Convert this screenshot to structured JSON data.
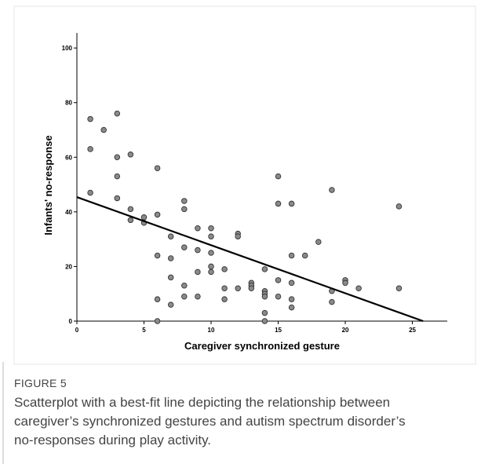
{
  "chart_data": {
    "type": "scatter",
    "xlabel": "Caregiver synchronized gesture",
    "ylabel": "Infants' no-response",
    "x": [
      1,
      1,
      1,
      2,
      3,
      3,
      3,
      3,
      4,
      4,
      4,
      5,
      5,
      6,
      6,
      6,
      6,
      6,
      7,
      7,
      7,
      7,
      8,
      8,
      8,
      8,
      8,
      9,
      9,
      9,
      9,
      10,
      10,
      10,
      10,
      10,
      11,
      11,
      11,
      12,
      12,
      12,
      13,
      13,
      13,
      14,
      14,
      14,
      14,
      14,
      14,
      15,
      15,
      15,
      15,
      16,
      16,
      16,
      16,
      16,
      17,
      18,
      19,
      19,
      19,
      20,
      20,
      21,
      24,
      24
    ],
    "y": [
      74,
      63,
      47,
      70,
      76,
      60,
      53,
      45,
      61,
      41,
      37,
      38,
      36,
      56,
      39,
      24,
      8,
      0,
      31,
      23,
      16,
      6,
      44,
      41,
      27,
      13,
      9,
      34,
      26,
      18,
      9,
      34,
      31,
      25,
      20,
      18,
      19,
      12,
      8,
      32,
      31,
      12,
      14,
      13,
      12,
      19,
      11,
      10,
      9,
      3,
      0,
      53,
      43,
      15,
      9,
      43,
      24,
      14,
      8,
      5,
      24,
      29,
      48,
      11,
      7,
      15,
      14,
      12,
      42,
      12
    ],
    "color": "#8a8a8a",
    "fit_line": {
      "x": [
        0,
        25.8
      ],
      "y": [
        45.4,
        0
      ],
      "color": "#000000"
    },
    "xlim": [
      0,
      27.6
    ],
    "xticks": [
      0,
      5,
      10,
      15,
      20,
      25
    ],
    "ylim": [
      0,
      105.5
    ],
    "yticks": [
      0,
      20,
      40,
      60,
      80,
      100
    ],
    "grid": false
  },
  "caption": {
    "label": "FIGURE 5",
    "text": "Scatterplot with a best-fit line depicting the relationship between caregiver’s synchronized gestures and autism spectrum disorder’s no-responses during play activity."
  }
}
